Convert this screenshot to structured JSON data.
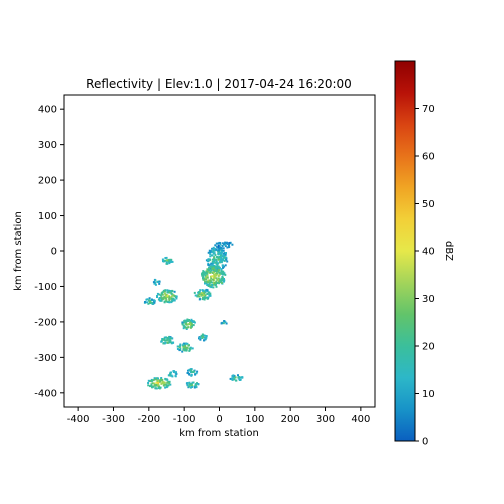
{
  "chart_data": {
    "type": "heatmap",
    "title": "Reflectivity | Elev:1.0 | 2017-04-24 16:20:00",
    "xlabel": "km from station",
    "ylabel": "km from station",
    "xlim": [
      -440,
      440
    ],
    "ylim": [
      -440,
      440
    ],
    "xticks": [
      -400,
      -300,
      -200,
      -100,
      0,
      100,
      200,
      300,
      400
    ],
    "yticks": [
      400,
      300,
      200,
      100,
      0,
      -100,
      -200,
      -300,
      -400
    ],
    "colorbar": {
      "label": "dBZ",
      "vmin": 0,
      "vmax": 80,
      "ticks": [
        0,
        10,
        20,
        30,
        40,
        50,
        60,
        70
      ],
      "colors": [
        "#0a5fc0",
        "#1893c8",
        "#2db7c8",
        "#3bbf9b",
        "#62c46a",
        "#a3d45a",
        "#e6e84a",
        "#f2d038",
        "#f0a524",
        "#e8731a",
        "#d94412",
        "#b81208",
        "#8f0000"
      ]
    },
    "echo_regions": [
      {
        "x": -10,
        "y": -20,
        "rx": 30,
        "ry": 35,
        "dbz": 20
      },
      {
        "x": 10,
        "y": 20,
        "rx": 25,
        "ry": 10,
        "dbz": 8
      },
      {
        "x": -20,
        "y": -70,
        "rx": 35,
        "ry": 30,
        "dbz": 35
      },
      {
        "x": -50,
        "y": -120,
        "rx": 25,
        "ry": 15,
        "dbz": 28
      },
      {
        "x": -150,
        "y": -125,
        "rx": 30,
        "ry": 18,
        "dbz": 32
      },
      {
        "x": -200,
        "y": -140,
        "rx": 15,
        "ry": 10,
        "dbz": 22
      },
      {
        "x": -180,
        "y": -85,
        "rx": 10,
        "ry": 8,
        "dbz": 20
      },
      {
        "x": -150,
        "y": -25,
        "rx": 15,
        "ry": 10,
        "dbz": 25
      },
      {
        "x": -90,
        "y": -205,
        "rx": 20,
        "ry": 15,
        "dbz": 32
      },
      {
        "x": -150,
        "y": -250,
        "rx": 20,
        "ry": 12,
        "dbz": 25
      },
      {
        "x": -100,
        "y": -270,
        "rx": 22,
        "ry": 12,
        "dbz": 28
      },
      {
        "x": -50,
        "y": -240,
        "rx": 12,
        "ry": 10,
        "dbz": 20
      },
      {
        "x": 10,
        "y": -200,
        "rx": 8,
        "ry": 6,
        "dbz": 18
      },
      {
        "x": -175,
        "y": -370,
        "rx": 35,
        "ry": 15,
        "dbz": 35
      },
      {
        "x": -135,
        "y": -345,
        "rx": 12,
        "ry": 10,
        "dbz": 22
      },
      {
        "x": -80,
        "y": -340,
        "rx": 15,
        "ry": 10,
        "dbz": 20
      },
      {
        "x": -80,
        "y": -375,
        "rx": 20,
        "ry": 8,
        "dbz": 25
      },
      {
        "x": 45,
        "y": -355,
        "rx": 18,
        "ry": 8,
        "dbz": 22
      }
    ]
  }
}
